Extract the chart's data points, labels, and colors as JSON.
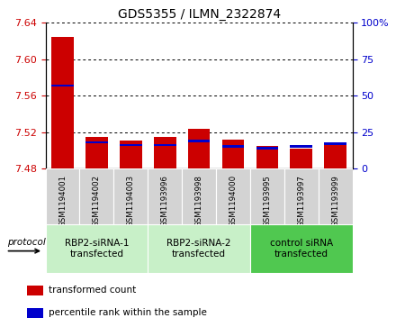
{
  "title": "GDS5355 / ILMN_2322874",
  "samples": [
    "GSM1194001",
    "GSM1194002",
    "GSM1194003",
    "GSM1193996",
    "GSM1193998",
    "GSM1194000",
    "GSM1193995",
    "GSM1193997",
    "GSM1193999"
  ],
  "transformed_counts": [
    7.625,
    7.515,
    7.511,
    7.515,
    7.524,
    7.512,
    7.505,
    7.502,
    7.506
  ],
  "percentile_ranks": [
    57,
    18,
    16,
    16,
    19,
    15,
    14,
    15,
    17
  ],
  "ylim_left": [
    7.48,
    7.64
  ],
  "ylim_right": [
    0,
    100
  ],
  "yticks_left": [
    7.48,
    7.52,
    7.56,
    7.6,
    7.64
  ],
  "yticks_right": [
    0,
    25,
    50,
    75,
    100
  ],
  "bar_color": "#cc0000",
  "percentile_color": "#0000cc",
  "protocol_groups": [
    {
      "label": "RBP2-siRNA-1\ntransfected",
      "indices": [
        0,
        1,
        2
      ],
      "color": "#c8f0c8"
    },
    {
      "label": "RBP2-siRNA-2\ntransfected",
      "indices": [
        3,
        4,
        5
      ],
      "color": "#c8f0c8"
    },
    {
      "label": "control siRNA\ntransfected",
      "indices": [
        6,
        7,
        8
      ],
      "color": "#50c850"
    }
  ],
  "protocol_label": "protocol",
  "legend_items": [
    {
      "color": "#cc0000",
      "label": "transformed count"
    },
    {
      "color": "#0000cc",
      "label": "percentile rank within the sample"
    }
  ],
  "left_tick_color": "#cc0000",
  "right_tick_color": "#0000cc",
  "sample_bg_color": "#d3d3d3"
}
